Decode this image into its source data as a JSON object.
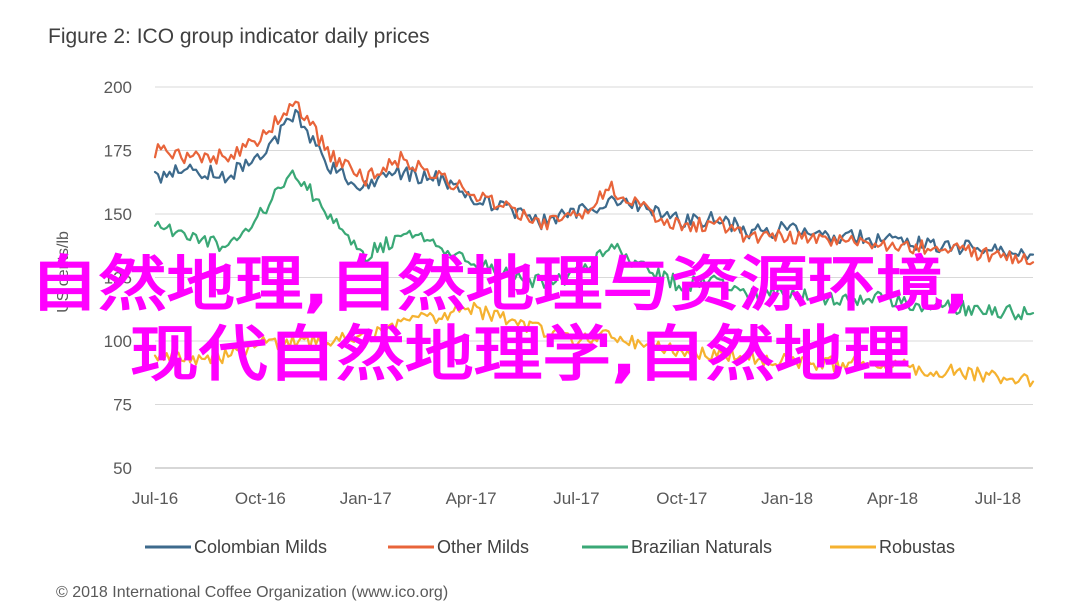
{
  "chart_data": {
    "type": "line",
    "title": "Figure 2: ICO group indicator daily prices",
    "ylabel": "US cents/lb",
    "ylim": [
      50,
      200
    ],
    "yticks": [
      50,
      75,
      100,
      125,
      150,
      175,
      200
    ],
    "grid": true,
    "legend_position": "bottom",
    "x": [
      "Jul-16",
      "Aug-16",
      "Sep-16",
      "Oct-16",
      "Nov-16",
      "Dec-16",
      "Jan-17",
      "Feb-17",
      "Mar-17",
      "Apr-17",
      "May-17",
      "Jun-17",
      "Jul-17",
      "Aug-17",
      "Sep-17",
      "Oct-17",
      "Nov-17",
      "Dec-17",
      "Jan-18",
      "Feb-18",
      "Mar-18",
      "Apr-18",
      "May-18",
      "Jun-18",
      "Jul-18",
      "Aug-18"
    ],
    "xticks": [
      "Jul-16",
      "Oct-16",
      "Jan-17",
      "Apr-17",
      "Jul-17",
      "Oct-17",
      "Jan-18",
      "Apr-18",
      "Jul-18"
    ],
    "series": [
      {
        "name": "Colombian Milds",
        "color": "#3d6a8c",
        "values": [
          164,
          168,
          165,
          172,
          189,
          168,
          161,
          166,
          164,
          157,
          152,
          147,
          150,
          156,
          152,
          147,
          148,
          143,
          144,
          142,
          141,
          139,
          138,
          137,
          135,
          134
        ]
      },
      {
        "name": "Other Milds",
        "color": "#e8643a",
        "values": [
          175,
          172,
          173,
          180,
          194,
          173,
          164,
          172,
          166,
          158,
          152,
          146,
          149,
          160,
          151,
          145,
          147,
          140,
          141,
          139,
          139,
          137,
          137,
          136,
          133,
          131
        ]
      },
      {
        "name": "Brazilian Naturals",
        "color": "#3aa876",
        "values": [
          145,
          140,
          138,
          150,
          167,
          148,
          134,
          141,
          139,
          130,
          127,
          123,
          126,
          138,
          128,
          122,
          124,
          118,
          119,
          117,
          117,
          116,
          114,
          113,
          112,
          111
        ]
      },
      {
        "name": "Robustas",
        "color": "#f5b230",
        "values": [
          95,
          93,
          94,
          99,
          100,
          100,
          101,
          106,
          110,
          113,
          108,
          104,
          100,
          102,
          98,
          96,
          95,
          93,
          93,
          91,
          91,
          90,
          89,
          88,
          86,
          84
        ]
      }
    ]
  },
  "footer": "© 2018 International Coffee Organization (www.ico.org)",
  "overlay": {
    "line1": "自然地理,自然地理与资源环境,",
    "line2": "现代自然地理学,自然地理",
    "color": "#ff00ff"
  }
}
